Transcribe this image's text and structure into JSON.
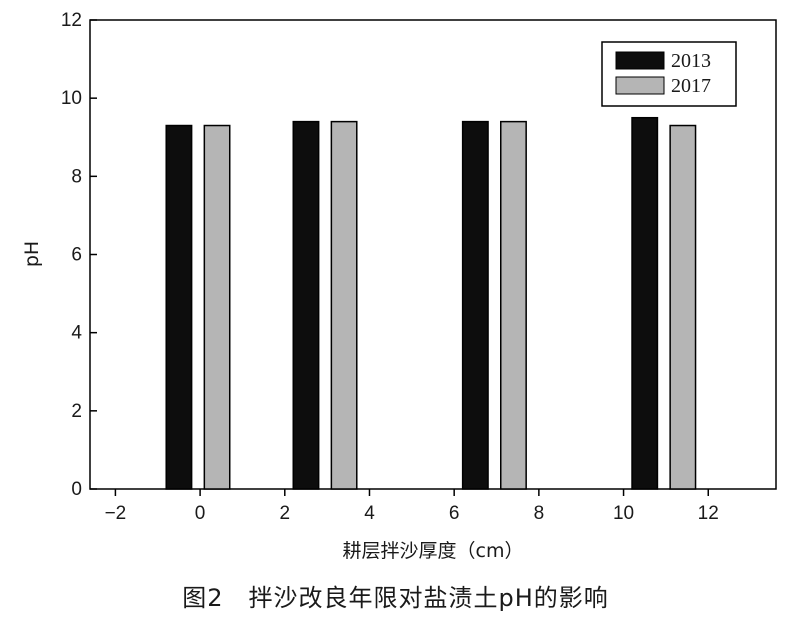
{
  "chart_data": {
    "type": "bar",
    "xlabel": "耕层拌沙厚度（cm）",
    "ylabel": "pH",
    "xlim": [
      -2.6,
      13.6
    ],
    "ylim": [
      0,
      12
    ],
    "xticks": [
      "−2",
      "0",
      "2",
      "4",
      "6",
      "8",
      "10",
      "12"
    ],
    "xtick_values": [
      -2,
      0,
      2,
      4,
      6,
      8,
      10,
      12
    ],
    "yticks": [
      "0",
      "2",
      "4",
      "6",
      "8",
      "10",
      "12"
    ],
    "ytick_values": [
      0,
      2,
      4,
      6,
      8,
      10,
      12
    ],
    "grid": false,
    "legend_position": "top-right",
    "bar_width": 0.6,
    "series": [
      {
        "name": "2013",
        "color": "#0d0d0d",
        "x": [
          -0.5,
          2.5,
          6.5,
          10.5
        ],
        "values": [
          9.3,
          9.4,
          9.4,
          9.5
        ]
      },
      {
        "name": "2017",
        "color": "#b5b5b5",
        "x": [
          0.4,
          3.4,
          7.4,
          11.4
        ],
        "values": [
          9.3,
          9.4,
          9.4,
          9.3
        ]
      }
    ]
  },
  "caption": "图2　拌沙改良年限对盐渍土pH的影响"
}
